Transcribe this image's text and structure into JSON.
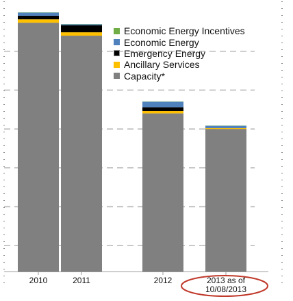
{
  "chart_data": {
    "type": "bar",
    "stacked": true,
    "categories": [
      "2010",
      "2011",
      "2012",
      "2013 as of 10/08/2013"
    ],
    "category_lines": [
      [
        "2010"
      ],
      [
        "2011"
      ],
      [
        "2012"
      ],
      [
        "2013 as of",
        "10/08/2013"
      ]
    ],
    "ylim": [
      0,
      100
    ],
    "grid": true,
    "legend_position": "top-right",
    "highlighted_category": "2013 as of 10/08/2013",
    "highlight_color": "#c0392b",
    "series": [
      {
        "name": "Capacity*",
        "color": "#808080",
        "values": [
          96.0,
          91.0,
          61.0,
          55.0
        ]
      },
      {
        "name": "Ancillary Services",
        "color": "#ffc000",
        "values": [
          1.3,
          1.3,
          0.9,
          0.3
        ]
      },
      {
        "name": "Emergency Energy",
        "color": "#000000",
        "values": [
          1.4,
          2.7,
          1.5,
          0.0
        ]
      },
      {
        "name": "Economic Energy",
        "color": "#4f81bd",
        "values": [
          1.2,
          0.4,
          2.1,
          0.9
        ]
      },
      {
        "name": "Economic Energy Incentives",
        "color": "#70ad47",
        "values": [
          0.1,
          0.1,
          0.1,
          0.1
        ]
      }
    ],
    "legend_order": [
      "Economic Energy Incentives",
      "Economic Energy",
      "Emergency Energy",
      "Ancillary Services",
      "Capacity*"
    ]
  }
}
